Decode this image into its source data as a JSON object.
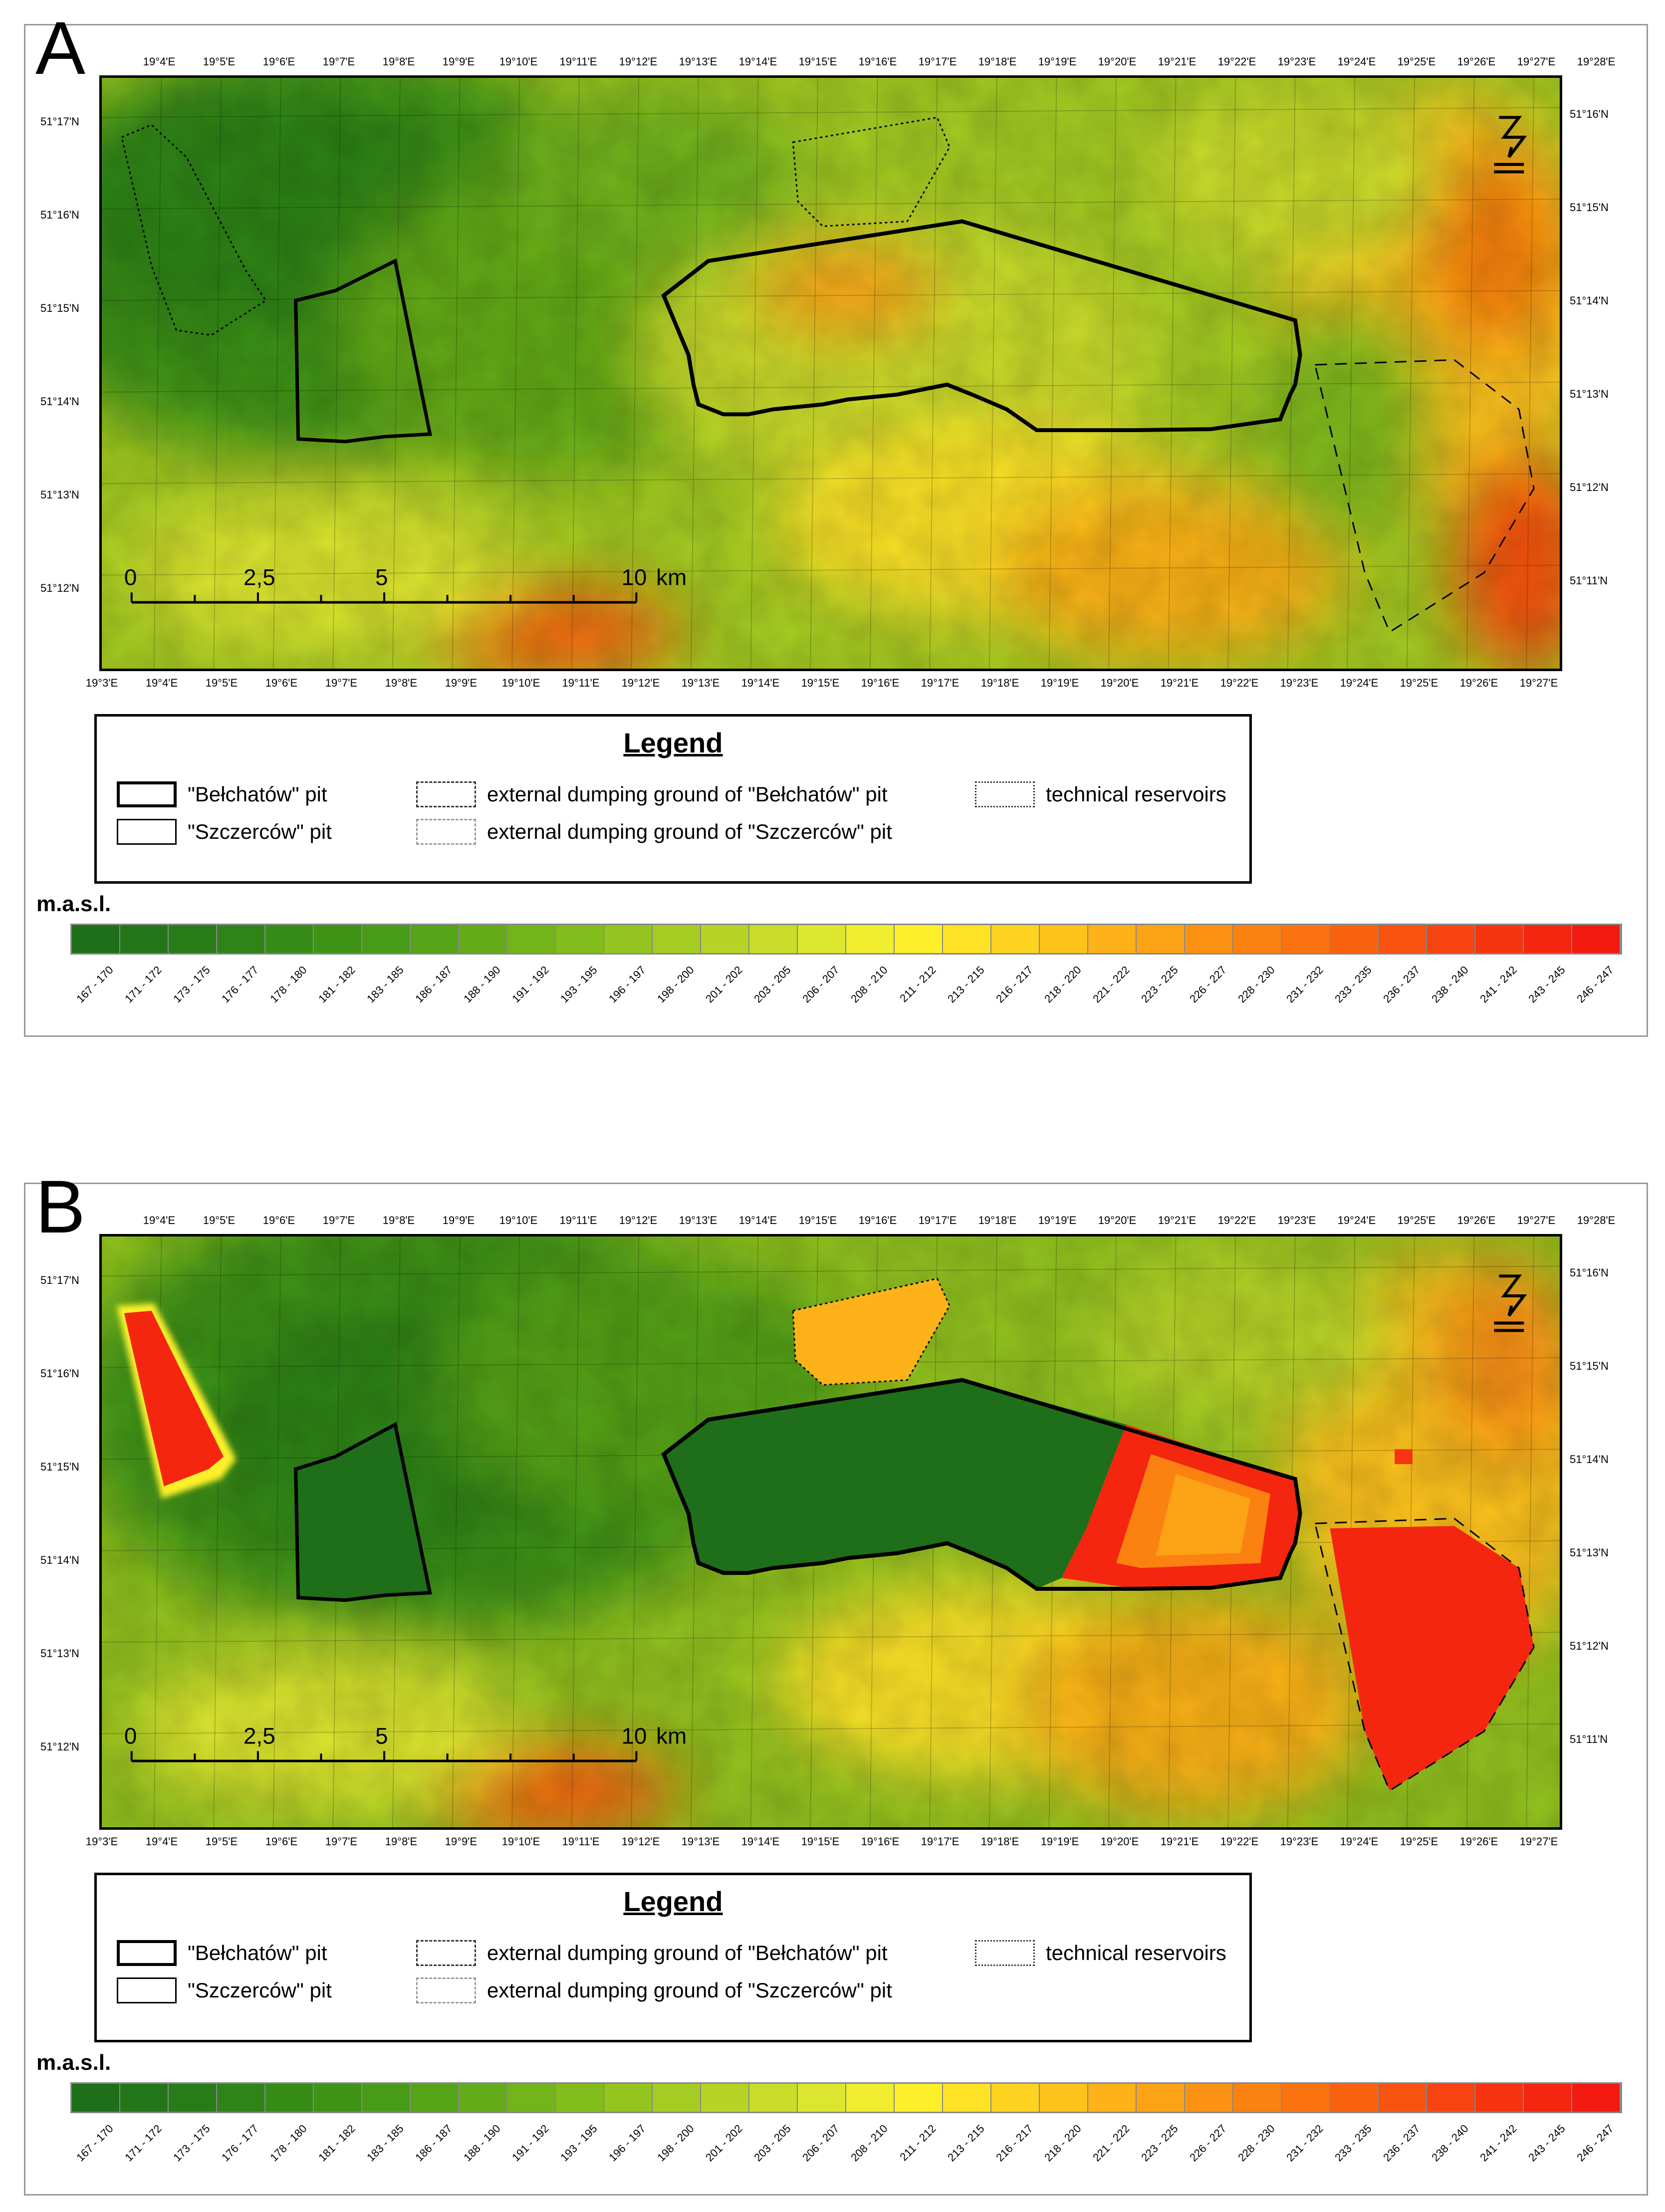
{
  "panels": [
    {
      "id": "A",
      "letter": "A",
      "variant": "before"
    },
    {
      "id": "B",
      "letter": "B",
      "variant": "after"
    }
  ],
  "lon_labels_top": [
    "19°4'E",
    "19°5'E",
    "19°6'E",
    "19°7'E",
    "19°8'E",
    "19°9'E",
    "19°10'E",
    "19°11'E",
    "19°12'E",
    "19°13'E",
    "19°14'E",
    "19°15'E",
    "19°16'E",
    "19°17'E",
    "19°18'E",
    "19°19'E",
    "19°20'E",
    "19°21'E",
    "19°22'E",
    "19°23'E",
    "19°24'E",
    "19°25'E",
    "19°26'E",
    "19°27'E",
    "19°28'E"
  ],
  "lon_labels_bottom": [
    "19°3'E",
    "19°4'E",
    "19°5'E",
    "19°6'E",
    "19°7'E",
    "19°8'E",
    "19°9'E",
    "19°10'E",
    "19°11'E",
    "19°12'E",
    "19°13'E",
    "19°14'E",
    "19°15'E",
    "19°16'E",
    "19°17'E",
    "19°18'E",
    "19°19'E",
    "19°20'E",
    "19°21'E",
    "19°22'E",
    "19°23'E",
    "19°24'E",
    "19°25'E",
    "19°26'E",
    "19°27'E"
  ],
  "lat_labels_left": [
    "51°17'N",
    "51°16'N",
    "51°15'N",
    "51°14'N",
    "51°13'N",
    "51°12'N"
  ],
  "lat_labels_right": [
    "51°16'N",
    "51°15'N",
    "51°14'N",
    "51°13'N",
    "51°12'N",
    "51°11'N"
  ],
  "scale_bar": {
    "ticks": [
      "0",
      "2,5",
      "5",
      "10"
    ],
    "unit": "km"
  },
  "legend": {
    "title": "Legend",
    "items": {
      "belchatow_pit": "\"Bełchatów\" pit",
      "szczercow_pit": "\"Szczerców\" pit",
      "dump_belchatow": "external dumping ground of \"Bełchatów\" pit",
      "dump_szczercow": "external dumping ground of \"Szczerców\" pit",
      "reservoirs": "technical reservoirs"
    }
  },
  "elevation_scale": {
    "unit_label": "m.a.s.l.",
    "classes": [
      {
        "label": "167 - 170",
        "color": "#1e6e1a"
      },
      {
        "label": "171 - 172",
        "color": "#237519"
      },
      {
        "label": "173 - 175",
        "color": "#287c18"
      },
      {
        "label": "176 - 177",
        "color": "#2f8418"
      },
      {
        "label": "178 - 180",
        "color": "#368b17"
      },
      {
        "label": "181 - 182",
        "color": "#3e9317"
      },
      {
        "label": "183 - 185",
        "color": "#489b17"
      },
      {
        "label": "186 - 187",
        "color": "#55a317"
      },
      {
        "label": "188 - 190",
        "color": "#63ab18"
      },
      {
        "label": "191 - 192",
        "color": "#72b41a"
      },
      {
        "label": "193 - 195",
        "color": "#82bc1c"
      },
      {
        "label": "196 - 197",
        "color": "#93c41f"
      },
      {
        "label": "198 - 200",
        "color": "#a5cc22"
      },
      {
        "label": "201 - 202",
        "color": "#b7d426"
      },
      {
        "label": "203 - 205",
        "color": "#cadd2a"
      },
      {
        "label": "206 - 207",
        "color": "#dde62e"
      },
      {
        "label": "208 - 210",
        "color": "#f0ee2f"
      },
      {
        "label": "211 - 212",
        "color": "#fdf02a"
      },
      {
        "label": "213 - 215",
        "color": "#fde225"
      },
      {
        "label": "216 - 217",
        "color": "#fdd220"
      },
      {
        "label": "218 - 220",
        "color": "#fdc21c"
      },
      {
        "label": "221 - 222",
        "color": "#fcb218"
      },
      {
        "label": "223 - 225",
        "color": "#fca215"
      },
      {
        "label": "226 - 227",
        "color": "#fb9213"
      },
      {
        "label": "228 - 230",
        "color": "#fb8211"
      },
      {
        "label": "231 - 232",
        "color": "#fa7210"
      },
      {
        "label": "233 - 235",
        "color": "#f9620f"
      },
      {
        "label": "236 - 237",
        "color": "#f8520f"
      },
      {
        "label": "238 - 240",
        "color": "#f7430f"
      },
      {
        "label": "241 - 242",
        "color": "#f6340f"
      },
      {
        "label": "243 - 245",
        "color": "#f42610"
      },
      {
        "label": "246 - 247",
        "color": "#f21a10"
      }
    ]
  },
  "colors": {
    "pit_outline": "#000000",
    "frame_border": "#9a9a9a"
  }
}
